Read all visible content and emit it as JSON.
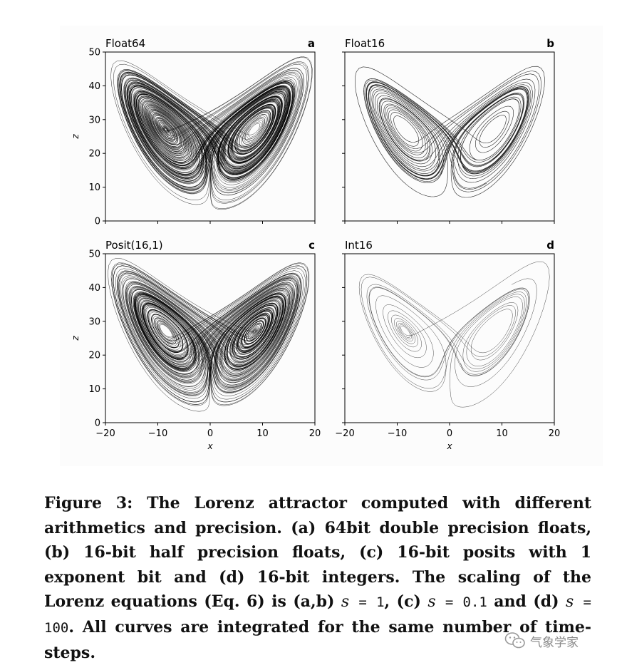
{
  "figure": {
    "panels": [
      {
        "id": "a",
        "title": "Float64",
        "letter": "a",
        "density": 160,
        "seed": 11,
        "stroke": 0.45,
        "opacity": 0.9
      },
      {
        "id": "b",
        "title": "Float16",
        "letter": "b",
        "density": 34,
        "seed": 23,
        "stroke": 0.6,
        "opacity": 0.85
      },
      {
        "id": "c",
        "title": "Posit(16,1)",
        "letter": "c",
        "density": 150,
        "seed": 37,
        "stroke": 0.45,
        "opacity": 0.9
      },
      {
        "id": "d",
        "title": "Int16",
        "letter": "d",
        "density": 16,
        "seed": 53,
        "stroke": 0.5,
        "opacity": 0.7
      }
    ],
    "x_ticks": [
      "−20",
      "−10",
      "0",
      "10",
      "20"
    ],
    "y_ticks": [
      "0",
      "10",
      "20",
      "30",
      "40",
      "50"
    ],
    "xlabel": "x",
    "ylabel": "z"
  },
  "chart_data": [
    {
      "type": "line",
      "title": "Float64",
      "xlabel": "x",
      "ylabel": "z",
      "xlim": [
        -20,
        20
      ],
      "ylim": [
        0,
        50
      ]
    },
    {
      "type": "line",
      "title": "Float16",
      "xlabel": "x",
      "ylabel": "z",
      "xlim": [
        -20,
        20
      ],
      "ylim": [
        0,
        50
      ]
    },
    {
      "type": "line",
      "title": "Posit(16,1)",
      "xlabel": "x",
      "ylabel": "z",
      "xlim": [
        -20,
        20
      ],
      "ylim": [
        0,
        50
      ]
    },
    {
      "type": "line",
      "title": "Int16",
      "xlabel": "x",
      "ylabel": "z",
      "xlim": [
        -20,
        20
      ],
      "ylim": [
        0,
        50
      ]
    }
  ],
  "caption": {
    "label": "Figure 3:",
    "text1": " The Lorenz attractor computed with different arithmetics and precision. (a) 64bit double precision floats, (b) 16-bit half precision floats, (c) 16-bit posits with 1 exponent bit and (d) 16-bit integers. The scaling of the Lorenz equations (Eq. 6) is (a,b) ",
    "s1": "s",
    "eq1": " = 1",
    "text2": ", (c) ",
    "s2": "s",
    "eq2": " = 0.1",
    "text3": " and (d) ",
    "s3": "s",
    "eq3": " = 100",
    "text4": ". All curves are integrated for the same number of time-steps."
  },
  "watermark": {
    "text": "气象学家"
  }
}
